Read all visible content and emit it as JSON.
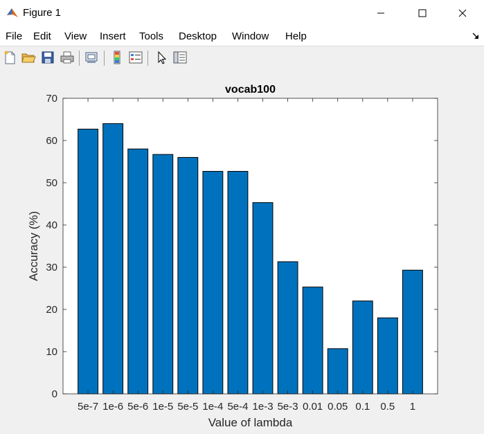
{
  "window": {
    "title": "Figure 1",
    "menu": [
      "File",
      "Edit",
      "View",
      "Insert",
      "Tools",
      "Desktop",
      "Window",
      "Help"
    ]
  },
  "toolbar": {
    "icons": [
      "new-figure-icon",
      "open-file-icon",
      "save-icon",
      "print-icon",
      "link-plot-icon",
      "colorbar-icon",
      "legend-icon",
      "edit-plot-arrow-icon",
      "property-inspector-icon"
    ]
  },
  "colors": {
    "bar_fill": "#0072BD",
    "bar_edge": "#000000",
    "axes_background": "#ffffff"
  },
  "chart_data": {
    "type": "bar",
    "title": "vocab100",
    "xlabel": "Value of lambda",
    "ylabel": "Accuracy (%)",
    "categories": [
      "5e-7",
      "1e-6",
      "5e-6",
      "1e-5",
      "5e-5",
      "1e-4",
      "5e-4",
      "1e-3",
      "5e-3",
      "0.01",
      "0.05",
      "0.1",
      "0.5",
      "1"
    ],
    "values": [
      62.7,
      64.0,
      58.0,
      56.7,
      56.0,
      52.7,
      52.7,
      45.3,
      31.3,
      25.3,
      10.7,
      22.0,
      18.0,
      29.3
    ],
    "ylim": [
      0,
      70
    ],
    "yticks": [
      0,
      10,
      20,
      30,
      40,
      50,
      60,
      70
    ],
    "grid": false,
    "legend": "none"
  }
}
